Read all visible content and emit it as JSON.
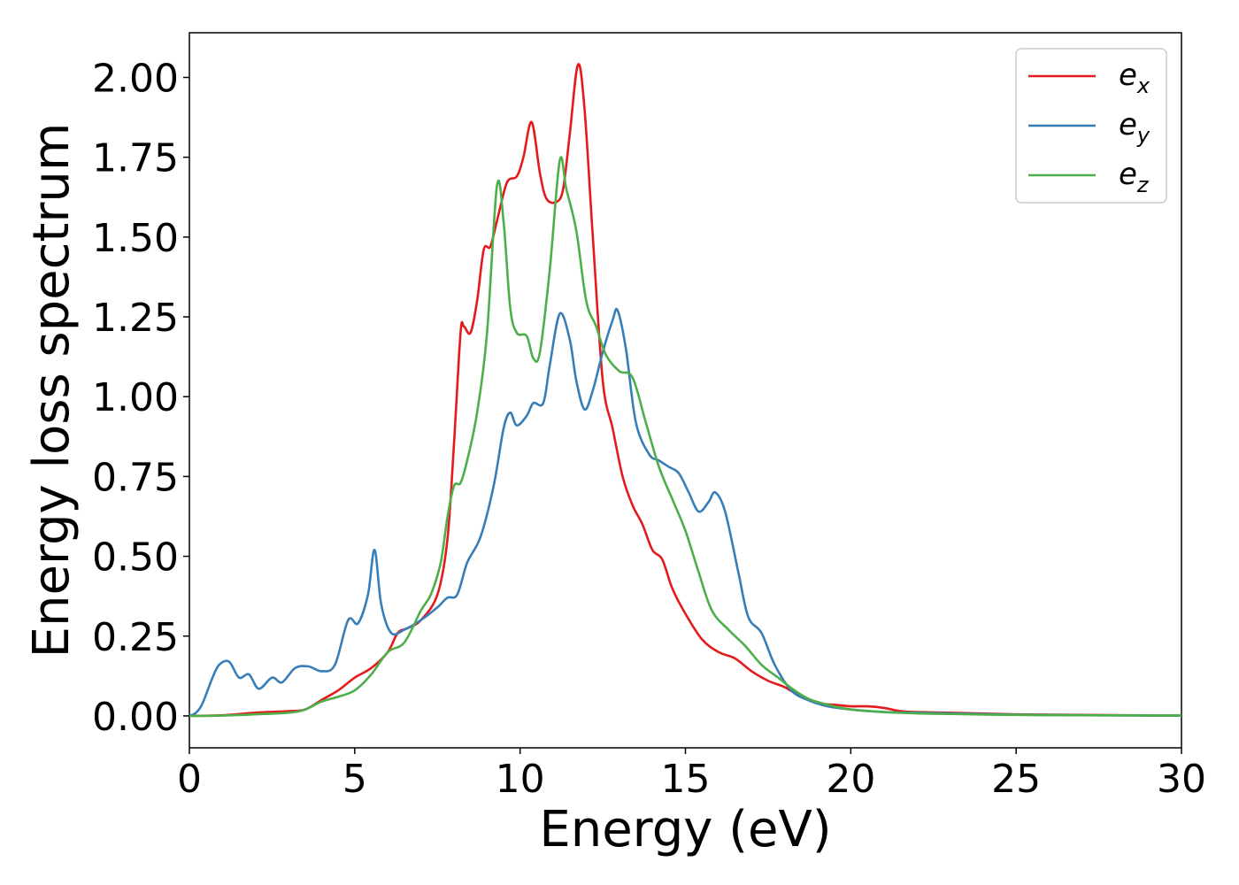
{
  "chart_data": {
    "type": "line",
    "title": "",
    "xlabel": "Energy (eV)",
    "ylabel": "Energy loss spectrum",
    "xlim": [
      0,
      30
    ],
    "ylim": [
      -0.1,
      2.14
    ],
    "xticks": [
      0,
      5,
      10,
      15,
      20,
      25,
      30
    ],
    "xtick_labels": [
      "0",
      "5",
      "10",
      "15",
      "20",
      "25",
      "30"
    ],
    "yticks": [
      0.0,
      0.25,
      0.5,
      0.75,
      1.0,
      1.25,
      1.5,
      1.75,
      2.0
    ],
    "ytick_labels": [
      "0.00",
      "0.25",
      "0.50",
      "0.75",
      "1.00",
      "1.25",
      "1.50",
      "1.75",
      "2.00"
    ],
    "grid": false,
    "legend_position": "top-right",
    "series": [
      {
        "name": "e_x",
        "legend_base": "e",
        "legend_sub": "x",
        "color": "#e41a1c",
        "points": [
          [
            0,
            0
          ],
          [
            1,
            0.002
          ],
          [
            2,
            0.01
          ],
          [
            3,
            0.015
          ],
          [
            3.5,
            0.02
          ],
          [
            4,
            0.05
          ],
          [
            4.5,
            0.08
          ],
          [
            5,
            0.12
          ],
          [
            5.5,
            0.15
          ],
          [
            6,
            0.2
          ],
          [
            6.3,
            0.26
          ],
          [
            6.6,
            0.275
          ],
          [
            7,
            0.3
          ],
          [
            7.5,
            0.38
          ],
          [
            7.8,
            0.55
          ],
          [
            8.0,
            0.85
          ],
          [
            8.2,
            1.2
          ],
          [
            8.3,
            1.22
          ],
          [
            8.5,
            1.2
          ],
          [
            8.7,
            1.3
          ],
          [
            8.9,
            1.46
          ],
          [
            9.1,
            1.47
          ],
          [
            9.3,
            1.55
          ],
          [
            9.6,
            1.67
          ],
          [
            9.9,
            1.69
          ],
          [
            10.1,
            1.75
          ],
          [
            10.35,
            1.86
          ],
          [
            10.6,
            1.7
          ],
          [
            10.8,
            1.62
          ],
          [
            11.1,
            1.61
          ],
          [
            11.3,
            1.65
          ],
          [
            11.5,
            1.82
          ],
          [
            11.75,
            2.04
          ],
          [
            11.95,
            1.9
          ],
          [
            12.2,
            1.5
          ],
          [
            12.5,
            1.05
          ],
          [
            12.8,
            0.9
          ],
          [
            13.1,
            0.75
          ],
          [
            13.4,
            0.66
          ],
          [
            13.7,
            0.6
          ],
          [
            14.0,
            0.52
          ],
          [
            14.3,
            0.49
          ],
          [
            14.6,
            0.4
          ],
          [
            15.0,
            0.32
          ],
          [
            15.5,
            0.24
          ],
          [
            16,
            0.2
          ],
          [
            16.5,
            0.18
          ],
          [
            17,
            0.14
          ],
          [
            17.5,
            0.11
          ],
          [
            18,
            0.09
          ],
          [
            18.5,
            0.06
          ],
          [
            19,
            0.04
          ],
          [
            19.5,
            0.035
          ],
          [
            20,
            0.03
          ],
          [
            20.5,
            0.03
          ],
          [
            21,
            0.025
          ],
          [
            21.5,
            0.015
          ],
          [
            22,
            0.012
          ],
          [
            23,
            0.01
          ],
          [
            25,
            0.005
          ],
          [
            27,
            0.003
          ],
          [
            30,
            0.001
          ]
        ]
      },
      {
        "name": "e_y",
        "legend_base": "e",
        "legend_sub": "y",
        "color": "#377eb8",
        "points": [
          [
            0,
            0
          ],
          [
            0.2,
            0.01
          ],
          [
            0.4,
            0.04
          ],
          [
            0.7,
            0.12
          ],
          [
            0.9,
            0.16
          ],
          [
            1.2,
            0.17
          ],
          [
            1.5,
            0.12
          ],
          [
            1.8,
            0.13
          ],
          [
            2.1,
            0.085
          ],
          [
            2.5,
            0.12
          ],
          [
            2.8,
            0.105
          ],
          [
            3.2,
            0.15
          ],
          [
            3.6,
            0.155
          ],
          [
            4.0,
            0.14
          ],
          [
            4.4,
            0.16
          ],
          [
            4.8,
            0.3
          ],
          [
            5.1,
            0.29
          ],
          [
            5.4,
            0.38
          ],
          [
            5.6,
            0.52
          ],
          [
            5.8,
            0.35
          ],
          [
            6.1,
            0.26
          ],
          [
            6.5,
            0.27
          ],
          [
            7,
            0.3
          ],
          [
            7.5,
            0.34
          ],
          [
            7.8,
            0.37
          ],
          [
            8.1,
            0.38
          ],
          [
            8.4,
            0.48
          ],
          [
            8.8,
            0.56
          ],
          [
            9.2,
            0.72
          ],
          [
            9.5,
            0.9
          ],
          [
            9.7,
            0.95
          ],
          [
            9.9,
            0.91
          ],
          [
            10.2,
            0.94
          ],
          [
            10.4,
            0.98
          ],
          [
            10.7,
            0.98
          ],
          [
            10.9,
            1.1
          ],
          [
            11.2,
            1.26
          ],
          [
            11.5,
            1.18
          ],
          [
            11.7,
            1.05
          ],
          [
            11.95,
            0.96
          ],
          [
            12.2,
            1.02
          ],
          [
            12.5,
            1.14
          ],
          [
            12.8,
            1.24
          ],
          [
            12.95,
            1.27
          ],
          [
            13.2,
            1.15
          ],
          [
            13.5,
            0.92
          ],
          [
            13.9,
            0.82
          ],
          [
            14.2,
            0.8
          ],
          [
            14.5,
            0.78
          ],
          [
            14.8,
            0.76
          ],
          [
            15.1,
            0.7
          ],
          [
            15.4,
            0.64
          ],
          [
            15.7,
            0.67
          ],
          [
            15.9,
            0.7
          ],
          [
            16.2,
            0.64
          ],
          [
            16.6,
            0.45
          ],
          [
            16.9,
            0.31
          ],
          [
            17.3,
            0.26
          ],
          [
            17.7,
            0.16
          ],
          [
            18.2,
            0.08
          ],
          [
            18.7,
            0.05
          ],
          [
            19.3,
            0.03
          ],
          [
            20,
            0.02
          ],
          [
            21,
            0.012
          ],
          [
            22,
            0.01
          ],
          [
            23,
            0.008
          ],
          [
            25,
            0.004
          ],
          [
            27,
            0.002
          ],
          [
            30,
            0.001
          ]
        ]
      },
      {
        "name": "e_z",
        "legend_base": "e",
        "legend_sub": "z",
        "color": "#4daf4a",
        "points": [
          [
            0,
            0
          ],
          [
            1,
            0.001
          ],
          [
            2,
            0.005
          ],
          [
            3,
            0.01
          ],
          [
            3.5,
            0.02
          ],
          [
            4,
            0.045
          ],
          [
            4.5,
            0.06
          ],
          [
            5,
            0.08
          ],
          [
            5.5,
            0.13
          ],
          [
            6,
            0.2
          ],
          [
            6.5,
            0.23
          ],
          [
            7,
            0.33
          ],
          [
            7.3,
            0.38
          ],
          [
            7.6,
            0.48
          ],
          [
            7.8,
            0.62
          ],
          [
            8.0,
            0.72
          ],
          [
            8.2,
            0.73
          ],
          [
            8.4,
            0.8
          ],
          [
            8.7,
            0.95
          ],
          [
            9.0,
            1.2
          ],
          [
            9.3,
            1.66
          ],
          [
            9.5,
            1.55
          ],
          [
            9.7,
            1.28
          ],
          [
            9.9,
            1.2
          ],
          [
            10.2,
            1.19
          ],
          [
            10.4,
            1.12
          ],
          [
            10.6,
            1.14
          ],
          [
            10.9,
            1.4
          ],
          [
            11.2,
            1.74
          ],
          [
            11.4,
            1.65
          ],
          [
            11.7,
            1.52
          ],
          [
            12.0,
            1.3
          ],
          [
            12.3,
            1.22
          ],
          [
            12.6,
            1.13
          ],
          [
            13.0,
            1.08
          ],
          [
            13.4,
            1.06
          ],
          [
            13.8,
            0.92
          ],
          [
            14.2,
            0.78
          ],
          [
            14.6,
            0.68
          ],
          [
            15.0,
            0.58
          ],
          [
            15.4,
            0.45
          ],
          [
            15.8,
            0.33
          ],
          [
            16.3,
            0.27
          ],
          [
            16.8,
            0.22
          ],
          [
            17.3,
            0.16
          ],
          [
            17.8,
            0.12
          ],
          [
            18.3,
            0.08
          ],
          [
            18.8,
            0.05
          ],
          [
            19.5,
            0.03
          ],
          [
            20,
            0.02
          ],
          [
            21,
            0.012
          ],
          [
            22,
            0.008
          ],
          [
            23,
            0.006
          ],
          [
            25,
            0.003
          ],
          [
            27,
            0.002
          ],
          [
            30,
            0.001
          ]
        ]
      }
    ]
  }
}
